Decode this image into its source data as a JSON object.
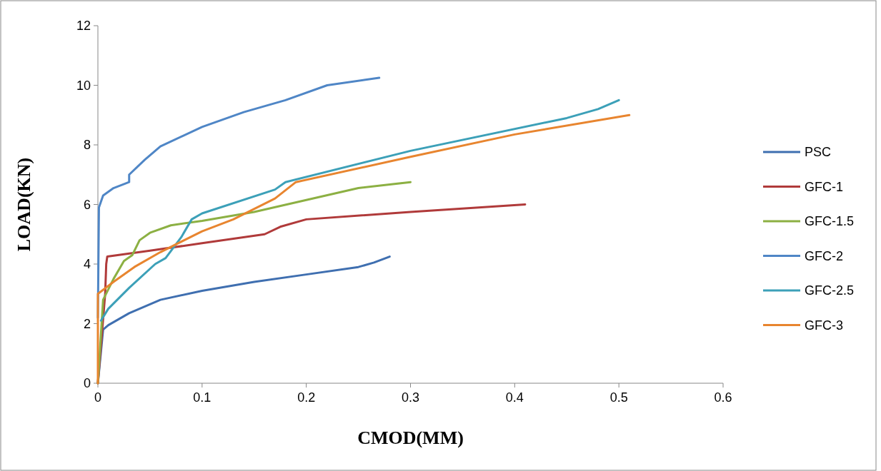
{
  "chart_data": {
    "type": "line",
    "xlabel": "CMOD(MM)",
    "ylabel": "LOAD(KN)",
    "xlim": [
      0,
      0.6
    ],
    "xticks": [
      0,
      0.1,
      0.2,
      0.3,
      0.4,
      0.5,
      0.6
    ],
    "ylim": [
      0,
      12
    ],
    "yticks": [
      0,
      2,
      4,
      6,
      8,
      10,
      12
    ],
    "legend": "right",
    "grid": false,
    "marker": "none",
    "line_style": "solid",
    "series": [
      {
        "name": "PSC",
        "color": "#3f6fb0",
        "x": [
          0,
          0.005,
          0.01,
          0.03,
          0.06,
          0.1,
          0.15,
          0.2,
          0.25,
          0.265,
          0.28
        ],
        "values": [
          0,
          1.8,
          1.95,
          2.35,
          2.8,
          3.1,
          3.4,
          3.65,
          3.9,
          4.05,
          4.25
        ]
      },
      {
        "name": "GFC-1",
        "color": "#b03a3a",
        "x": [
          0,
          0.007,
          0.008,
          0.009,
          0.05,
          0.1,
          0.16,
          0.175,
          0.2,
          0.3,
          0.41
        ],
        "values": [
          0,
          3.0,
          4.0,
          4.25,
          4.45,
          4.7,
          5.0,
          5.25,
          5.5,
          5.75,
          6.0
        ]
      },
      {
        "name": "GFC-1.5",
        "color": "#8cb043",
        "x": [
          0,
          0.005,
          0.015,
          0.025,
          0.033,
          0.04,
          0.05,
          0.07,
          0.1,
          0.15,
          0.2,
          0.25,
          0.3
        ],
        "values": [
          0,
          2.8,
          3.5,
          4.1,
          4.3,
          4.8,
          5.05,
          5.3,
          5.45,
          5.75,
          6.15,
          6.55,
          6.75
        ]
      },
      {
        "name": "GFC-2",
        "color": "#4f86c6",
        "x": [
          0,
          0.001,
          0.005,
          0.015,
          0.03,
          0.03,
          0.045,
          0.06,
          0.1,
          0.14,
          0.18,
          0.22,
          0.27
        ],
        "values": [
          2.2,
          5.9,
          6.3,
          6.55,
          6.75,
          7.0,
          7.5,
          7.95,
          8.6,
          9.1,
          9.5,
          10.0,
          10.25
        ]
      },
      {
        "name": "GFC-2.5",
        "color": "#3ca0b8",
        "x": [
          0.003,
          0.01,
          0.03,
          0.055,
          0.065,
          0.08,
          0.09,
          0.1,
          0.17,
          0.18,
          0.3,
          0.45,
          0.48,
          0.5
        ],
        "values": [
          2.1,
          2.5,
          3.2,
          4.0,
          4.2,
          4.9,
          5.5,
          5.7,
          6.5,
          6.75,
          7.8,
          8.9,
          9.2,
          9.5
        ]
      },
      {
        "name": "GFC-3",
        "color": "#e8852f",
        "x": [
          0,
          0,
          0.015,
          0.035,
          0.06,
          0.1,
          0.13,
          0.17,
          0.19,
          0.3,
          0.4,
          0.51
        ],
        "values": [
          0,
          3.0,
          3.4,
          3.9,
          4.4,
          5.1,
          5.5,
          6.2,
          6.75,
          7.6,
          8.35,
          9.0
        ]
      }
    ]
  }
}
